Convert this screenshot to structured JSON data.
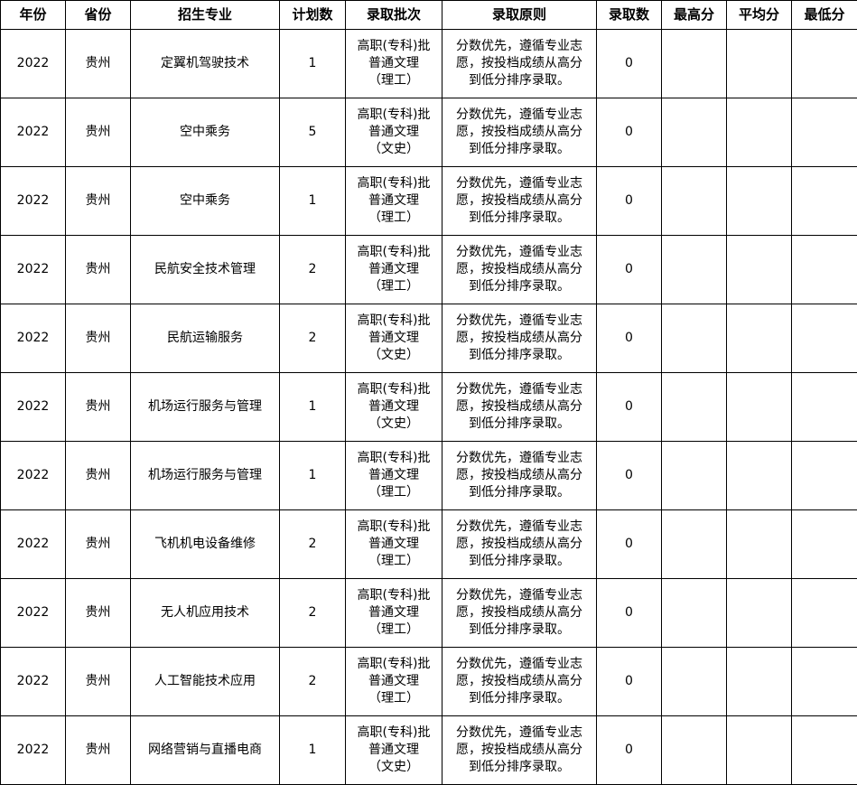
{
  "table": {
    "headers": [
      "年份",
      "省份",
      "招生专业",
      "计划数",
      "录取批次",
      "录取原则",
      "录取数",
      "最高分",
      "平均分",
      "最低分"
    ],
    "rows": [
      {
        "year": "2022",
        "province": "贵州",
        "major": "定翼机驾驶技术",
        "plan": "1",
        "batch": [
          "高职(专科)批",
          "普通文理",
          "（理工）"
        ],
        "principle": [
          "分数优先，遵循专业志",
          "愿，按投档成绩从高分",
          "到低分排序录取。"
        ],
        "admitted": "0",
        "max": "",
        "avg": "",
        "min": ""
      },
      {
        "year": "2022",
        "province": "贵州",
        "major": "空中乘务",
        "plan": "5",
        "batch": [
          "高职(专科)批",
          "普通文理",
          "（文史）"
        ],
        "principle": [
          "分数优先，遵循专业志",
          "愿，按投档成绩从高分",
          "到低分排序录取。"
        ],
        "admitted": "0",
        "max": "",
        "avg": "",
        "min": ""
      },
      {
        "year": "2022",
        "province": "贵州",
        "major": "空中乘务",
        "plan": "1",
        "batch": [
          "高职(专科)批",
          "普通文理",
          "（理工）"
        ],
        "principle": [
          "分数优先，遵循专业志",
          "愿，按投档成绩从高分",
          "到低分排序录取。"
        ],
        "admitted": "0",
        "max": "",
        "avg": "",
        "min": ""
      },
      {
        "year": "2022",
        "province": "贵州",
        "major": "民航安全技术管理",
        "plan": "2",
        "batch": [
          "高职(专科)批",
          "普通文理",
          "（理工）"
        ],
        "principle": [
          "分数优先，遵循专业志",
          "愿，按投档成绩从高分",
          "到低分排序录取。"
        ],
        "admitted": "0",
        "max": "",
        "avg": "",
        "min": ""
      },
      {
        "year": "2022",
        "province": "贵州",
        "major": "民航运输服务",
        "plan": "2",
        "batch": [
          "高职(专科)批",
          "普通文理",
          "（文史）"
        ],
        "principle": [
          "分数优先，遵循专业志",
          "愿，按投档成绩从高分",
          "到低分排序录取。"
        ],
        "admitted": "0",
        "max": "",
        "avg": "",
        "min": ""
      },
      {
        "year": "2022",
        "province": "贵州",
        "major": "机场运行服务与管理",
        "plan": "1",
        "batch": [
          "高职(专科)批",
          "普通文理",
          "（文史）"
        ],
        "principle": [
          "分数优先，遵循专业志",
          "愿，按投档成绩从高分",
          "到低分排序录取。"
        ],
        "admitted": "0",
        "max": "",
        "avg": "",
        "min": ""
      },
      {
        "year": "2022",
        "province": "贵州",
        "major": "机场运行服务与管理",
        "plan": "1",
        "batch": [
          "高职(专科)批",
          "普通文理",
          "（理工）"
        ],
        "principle": [
          "分数优先，遵循专业志",
          "愿，按投档成绩从高分",
          "到低分排序录取。"
        ],
        "admitted": "0",
        "max": "",
        "avg": "",
        "min": ""
      },
      {
        "year": "2022",
        "province": "贵州",
        "major": "飞机机电设备维修",
        "plan": "2",
        "batch": [
          "高职(专科)批",
          "普通文理",
          "（理工）"
        ],
        "principle": [
          "分数优先，遵循专业志",
          "愿，按投档成绩从高分",
          "到低分排序录取。"
        ],
        "admitted": "0",
        "max": "",
        "avg": "",
        "min": ""
      },
      {
        "year": "2022",
        "province": "贵州",
        "major": "无人机应用技术",
        "plan": "2",
        "batch": [
          "高职(专科)批",
          "普通文理",
          "（理工）"
        ],
        "principle": [
          "分数优先，遵循专业志",
          "愿，按投档成绩从高分",
          "到低分排序录取。"
        ],
        "admitted": "0",
        "max": "",
        "avg": "",
        "min": ""
      },
      {
        "year": "2022",
        "province": "贵州",
        "major": "人工智能技术应用",
        "plan": "2",
        "batch": [
          "高职(专科)批",
          "普通文理",
          "（理工）"
        ],
        "principle": [
          "分数优先，遵循专业志",
          "愿，按投档成绩从高分",
          "到低分排序录取。"
        ],
        "admitted": "0",
        "max": "",
        "avg": "",
        "min": ""
      },
      {
        "year": "2022",
        "province": "贵州",
        "major": "网络营销与直播电商",
        "plan": "1",
        "batch": [
          "高职(专科)批",
          "普通文理",
          "（文史）"
        ],
        "principle": [
          "分数优先，遵循专业志",
          "愿，按投档成绩从高分",
          "到低分排序录取。"
        ],
        "admitted": "0",
        "max": "",
        "avg": "",
        "min": ""
      }
    ]
  }
}
